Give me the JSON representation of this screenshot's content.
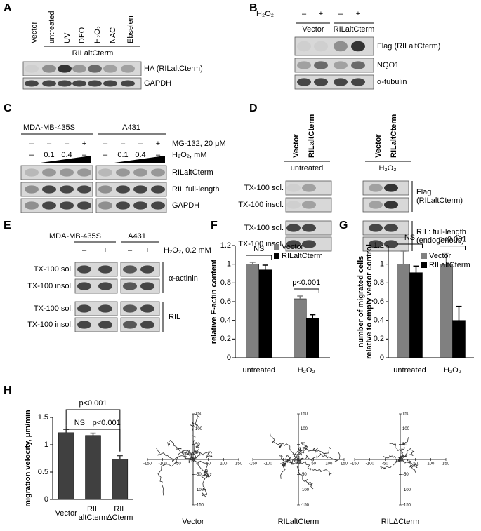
{
  "panels": {
    "A": {
      "label": "A",
      "lanes": [
        "Vector",
        "untreated",
        "UV",
        "DFO",
        "H₂O₂",
        "NAC",
        "Ebselen"
      ],
      "group": "RILaltCterm",
      "blots": [
        "HA (RILaltCterm)",
        "GAPDH"
      ]
    },
    "B": {
      "label": "B",
      "treatment": "H₂O₂",
      "signs": [
        "–",
        "+",
        "–",
        "+"
      ],
      "groups": [
        "Vector",
        "RILaltCterm"
      ],
      "blots": [
        "Flag (RILaltCterm)",
        "NQO1",
        "α-tubulin"
      ]
    },
    "C": {
      "label": "C",
      "cells": [
        "MDA-MB-435S",
        "A431"
      ],
      "rows": [
        {
          "name": "MG-132, 20 μM",
          "signs": [
            "–",
            "–",
            "–",
            "+",
            "–",
            "–",
            "–",
            "+"
          ]
        },
        {
          "name": "H₂O₂, mM",
          "signs": [
            "–",
            "0.1",
            "0.4",
            "–",
            "–",
            "0.1",
            "0.4",
            "–"
          ]
        }
      ],
      "blots": [
        "RILaltCterm",
        "RIL full-length",
        "GAPDH"
      ]
    },
    "D": {
      "label": "D",
      "lanes": [
        "Vector",
        "RILaltCterm",
        "Vector",
        "RILaltCterm"
      ],
      "conditions": [
        "untreated",
        "H₂O₂"
      ],
      "rows": [
        "TX-100 sol.",
        "TX-100 insol.",
        "TX-100 sol.",
        "TX-100 insol."
      ],
      "targets": [
        "Flag\n(RILaltCterm)",
        "RIL: full-length\n(endogenous)"
      ]
    },
    "E": {
      "label": "E",
      "cells": [
        "MDA-MB-435S",
        "A431"
      ],
      "signs": [
        "–",
        "+",
        "–",
        "+"
      ],
      "treatment": "H₂O₂, 0.2 mM",
      "rows": [
        "TX-100 sol.",
        "TX-100 insol.",
        "TX-100 sol.",
        "TX-100 insol."
      ],
      "targets": [
        "α-actinin",
        "RIL"
      ]
    }
  },
  "chart_data": [
    {
      "type": "bar",
      "label": "F",
      "ylabel": "relative F-actin content",
      "categories": [
        "untreated",
        "H₂O₂"
      ],
      "series": [
        {
          "name": "Vector",
          "color": "#808080",
          "values": [
            1.0,
            0.63
          ],
          "errors": [
            0.02,
            0.03
          ]
        },
        {
          "name": "RILaltCterm",
          "color": "#000000",
          "values": [
            0.94,
            0.42
          ],
          "errors": [
            0.05,
            0.04
          ]
        }
      ],
      "ylim": [
        0,
        1.2
      ],
      "yticks": [
        0,
        0.2,
        0.4,
        0.6,
        0.8,
        1,
        1.2
      ],
      "annotations": [
        "NS",
        "p<0.001"
      ]
    },
    {
      "type": "bar",
      "label": "G",
      "ylabel": "number of migrated cells\nrelative to empty vector control",
      "categories": [
        "untreated",
        "H₂O₂"
      ],
      "series": [
        {
          "name": "Vector",
          "color": "#808080",
          "values": [
            1.0,
            1.0
          ],
          "errors": [
            0.14,
            0.12
          ]
        },
        {
          "name": "RILaltCterm",
          "color": "#000000",
          "values": [
            0.91,
            0.4
          ],
          "errors": [
            0.07,
            0.15
          ]
        }
      ],
      "ylim": [
        0,
        1.2
      ],
      "yticks": [
        0,
        0.2,
        0.4,
        0.6,
        0.8,
        1,
        1.2
      ],
      "annotations": [
        "NS",
        "p<0.001"
      ]
    },
    {
      "type": "bar",
      "label": "H",
      "ylabel": "migration velocity, μm/min",
      "categories": [
        "Vector",
        "RIL\naltCterm",
        "RIL\nΔCterm"
      ],
      "series": [
        {
          "color": "#404040",
          "values": [
            1.22,
            1.17,
            0.74
          ],
          "errors": [
            0.06,
            0.04,
            0.06
          ]
        }
      ],
      "ylim": [
        0,
        1.5
      ],
      "yticks": [
        0,
        0.5,
        1,
        1.5
      ],
      "annotations": [
        "p<0.001",
        "NS",
        "p<0.001"
      ]
    }
  ],
  "trajectories": {
    "xticks": [
      -150,
      -100,
      -50,
      50,
      100,
      150
    ],
    "yticks": [
      150,
      100,
      50,
      -50,
      -100,
      -150
    ],
    "lim": 150,
    "names": [
      "Vector",
      "RILaltCterm",
      "RILΔCterm"
    ]
  }
}
